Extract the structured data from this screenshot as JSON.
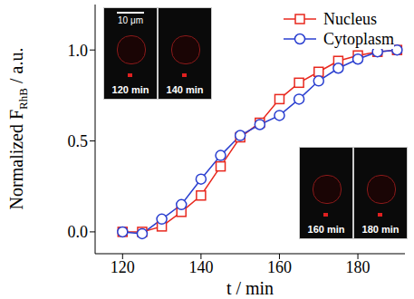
{
  "chart_data": {
    "type": "line",
    "x_label": "t / min",
    "y_label": {
      "text": "Normalized F",
      "subscript": "RhB",
      "suffix": " / a.u."
    },
    "xlim": [
      113,
      192
    ],
    "xticks": [
      120,
      140,
      160,
      180
    ],
    "ylim": [
      -0.12,
      1.25
    ],
    "yticks": [
      {
        "value": 0,
        "label": "0.0"
      },
      {
        "value": 0.5,
        "label": "0.5"
      },
      {
        "value": 1,
        "label": "1.0"
      }
    ],
    "legend": "top right",
    "x": [
      120,
      125,
      130,
      135,
      140,
      145,
      150,
      155,
      160,
      165,
      170,
      175,
      180,
      185,
      190
    ],
    "series": [
      {
        "name": "Nucleus",
        "color": "#e8281e",
        "marker": "square",
        "line_style": "solid",
        "values": [
          0.0,
          0.0,
          0.03,
          0.11,
          0.2,
          0.36,
          0.52,
          0.6,
          0.73,
          0.82,
          0.88,
          0.94,
          0.97,
          0.99,
          1.0
        ]
      },
      {
        "name": "Cytoplasm",
        "color": "#2a3fd0",
        "marker": "circle",
        "line_style": "solid",
        "values": [
          0.0,
          -0.01,
          0.07,
          0.15,
          0.29,
          0.42,
          0.53,
          0.59,
          0.64,
          0.73,
          0.83,
          0.9,
          0.95,
          0.99,
          1.0
        ]
      }
    ],
    "annotations": {
      "scale_bar": "10 μm",
      "insets": [
        "120 min",
        "140 min",
        "160 min",
        "180 min"
      ]
    }
  }
}
